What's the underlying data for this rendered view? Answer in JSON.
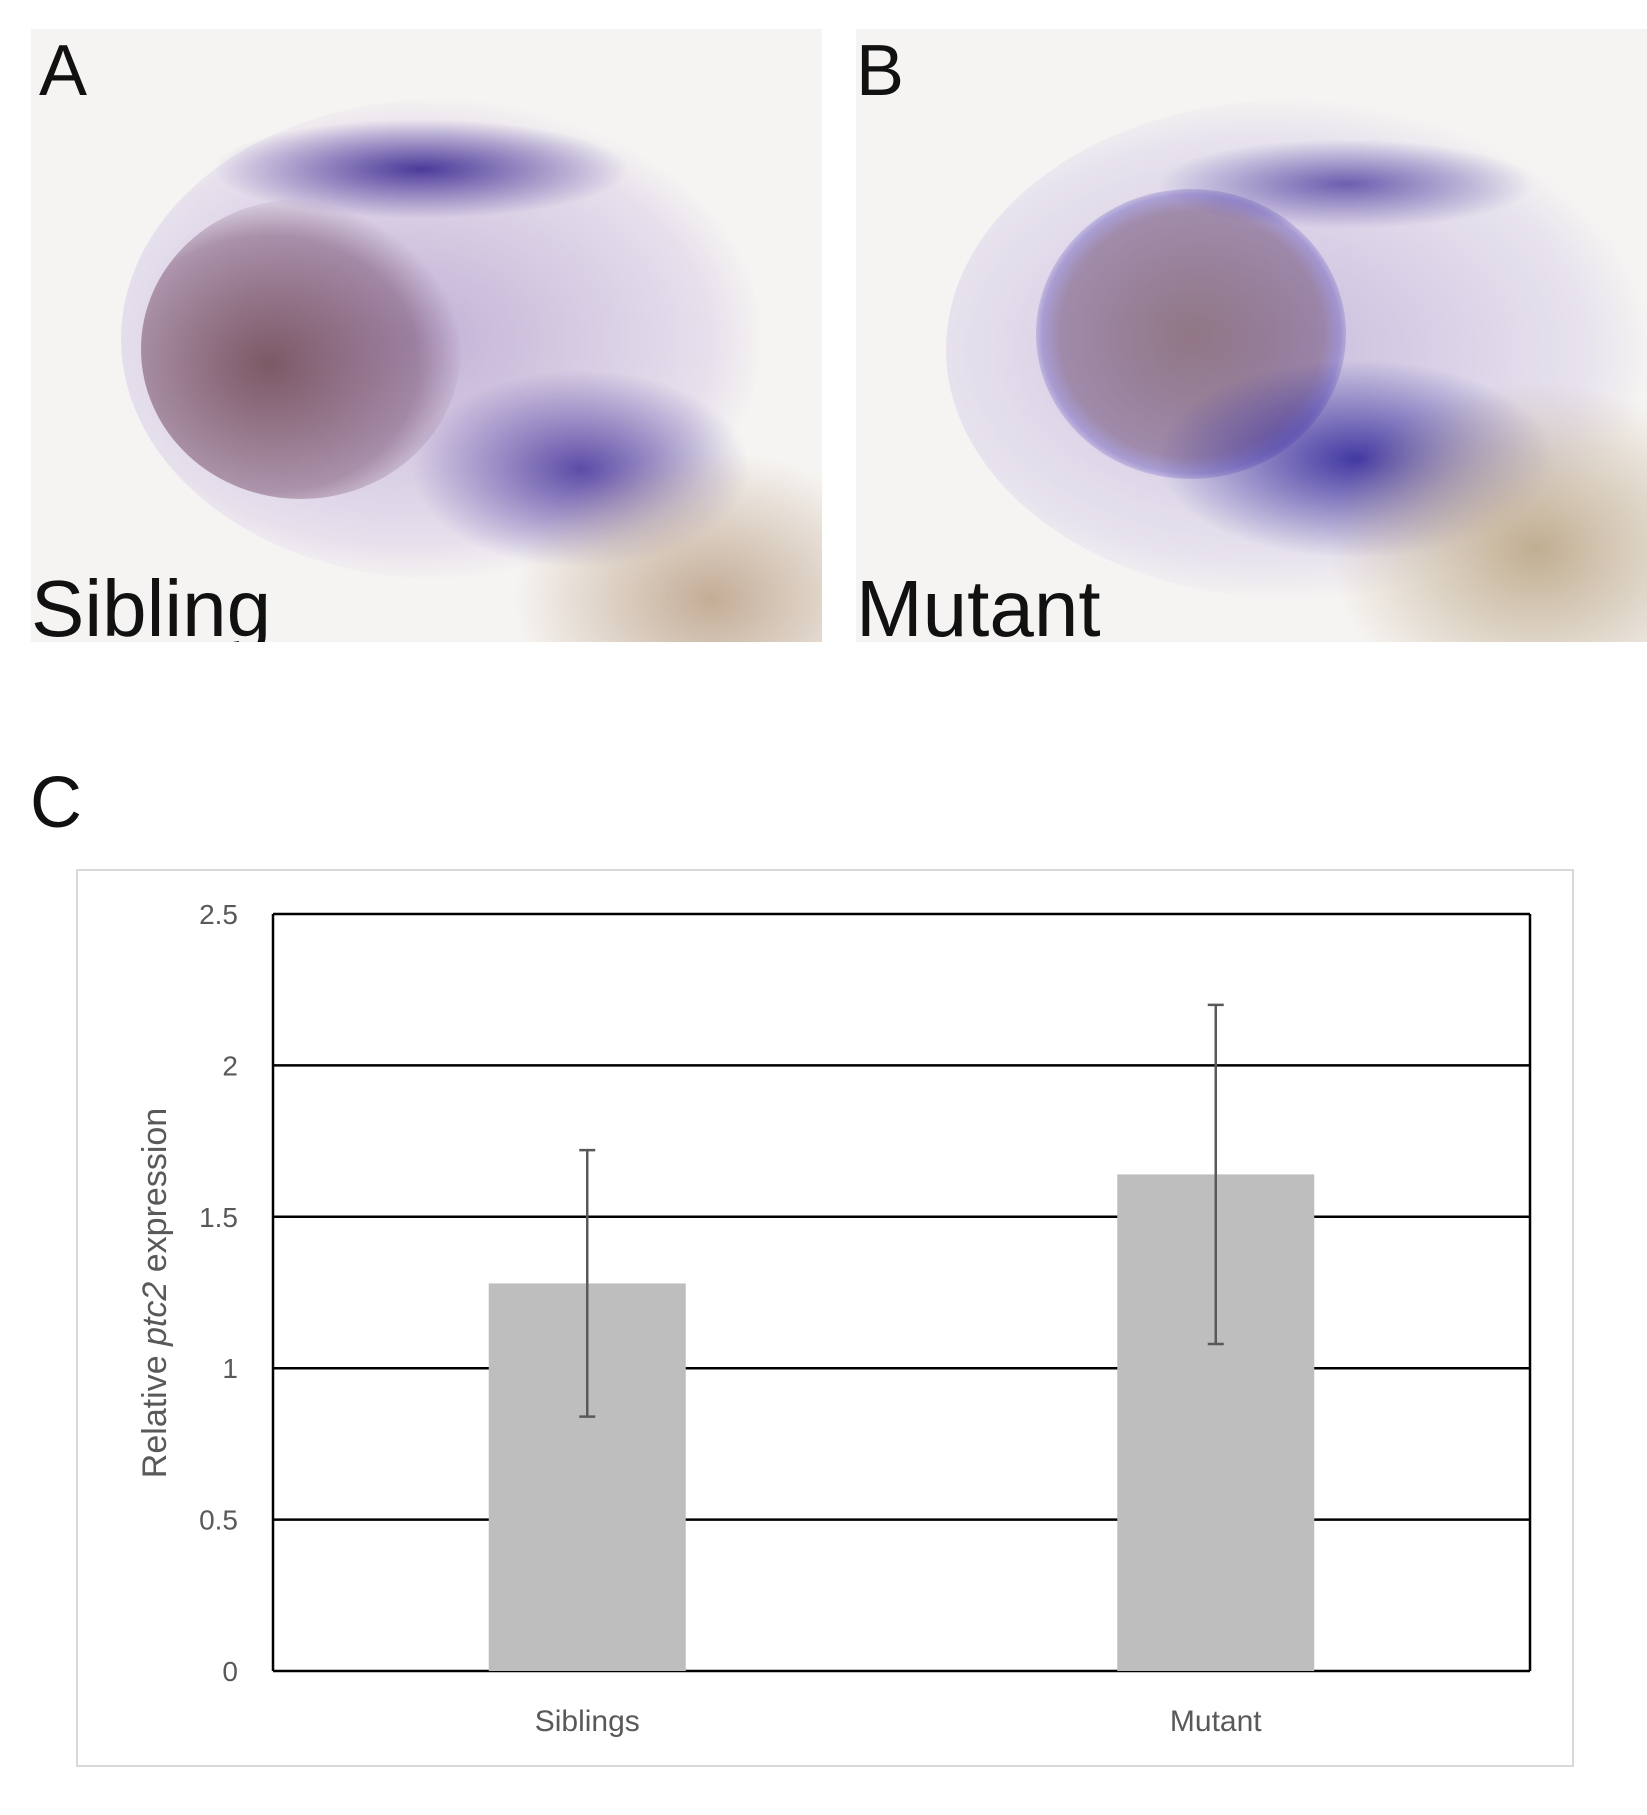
{
  "panels": [
    {
      "letter": "A",
      "caption": "Sibling"
    },
    {
      "letter": "B",
      "caption": "Mutant"
    }
  ],
  "panel_c_letter": "C",
  "chart_data": {
    "type": "bar",
    "title": "",
    "xlabel": "",
    "ylabel_prefix": "Relative ",
    "ylabel_gene": "ptc2",
    "ylabel_suffix": " expression",
    "categories": [
      "Siblings",
      "Mutant"
    ],
    "values": [
      1.28,
      1.64
    ],
    "error": [
      0.44,
      0.56
    ],
    "ylim": [
      0,
      2.5
    ],
    "yticks": [
      "0",
      "0.5",
      "1",
      "1.5",
      "2",
      "2.5"
    ],
    "grid": true,
    "colors": {
      "bar": "#bfbebe",
      "error": "#595959",
      "grid": "#000000"
    }
  }
}
